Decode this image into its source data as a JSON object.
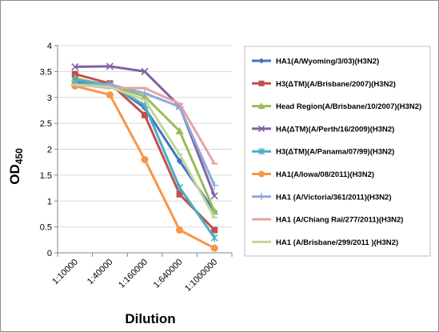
{
  "chart_data": {
    "type": "line",
    "categories": [
      "1:10000",
      "1:40000",
      "1:160000",
      "1:640000",
      "1:1000000"
    ],
    "ylabel_main": "OD",
    "ylabel_sub": "450",
    "xlabel": "Dilution",
    "ylim": [
      0,
      4
    ],
    "yticks": [
      "0",
      "0.5",
      "1",
      "1.5",
      "2",
      "2.5",
      "3",
      "3.5",
      "4"
    ],
    "grid": "horizontal",
    "legend": "right",
    "series": [
      {
        "name": "HA1(A/Wyoming/3/03)(H3N2)",
        "color": "#4472c4",
        "marker": "diamond",
        "values": [
          3.28,
          3.27,
          2.8,
          1.77,
          0.8
        ]
      },
      {
        "name": "H3(ΔTM)(A/Brisbane/2007)(H3N2)",
        "color": "#c0504d",
        "marker": "square",
        "values": [
          3.45,
          3.27,
          2.66,
          1.13,
          0.44
        ]
      },
      {
        "name": "Head Region(A/Brisbane/10/2007)(H3N2)",
        "color": "#9bbb59",
        "marker": "triangle",
        "values": [
          3.37,
          3.23,
          3.02,
          2.35,
          0.8
        ]
      },
      {
        "name": "HA(ΔTM)(A/Perth/16/2009)(H3N2)",
        "color": "#8064a2",
        "marker": "x",
        "values": [
          3.59,
          3.6,
          3.5,
          2.83,
          1.1
        ]
      },
      {
        "name": "H3(ΔTM)(A/Panama/07/99)(H3N2)",
        "color": "#4bacc6",
        "marker": "star",
        "values": [
          3.33,
          3.24,
          2.85,
          1.26,
          0.29
        ]
      },
      {
        "name": "HA1(A/Iowa/08/2011)(H3N2)",
        "color": "#f79646",
        "marker": "circle",
        "values": [
          3.22,
          3.05,
          1.8,
          0.44,
          0.09
        ]
      },
      {
        "name": "HA1 (A/Victoria/361/2011)(H3N2)",
        "color": "#8eaadb",
        "marker": "plus",
        "values": [
          3.25,
          3.25,
          3.08,
          2.82,
          1.3
        ]
      },
      {
        "name": "HA1 (A/Chiang Rai/277/2011)(H3N2)",
        "color": "#e6a4a3",
        "marker": "dash",
        "values": [
          3.25,
          3.18,
          3.18,
          2.88,
          1.72
        ]
      },
      {
        "name": "HA1 (A/Brisbane/299/2011 )(H3N2)",
        "color": "#c3d69b",
        "marker": "dash",
        "values": [
          3.24,
          3.2,
          2.95,
          1.9,
          0.68
        ]
      }
    ]
  }
}
